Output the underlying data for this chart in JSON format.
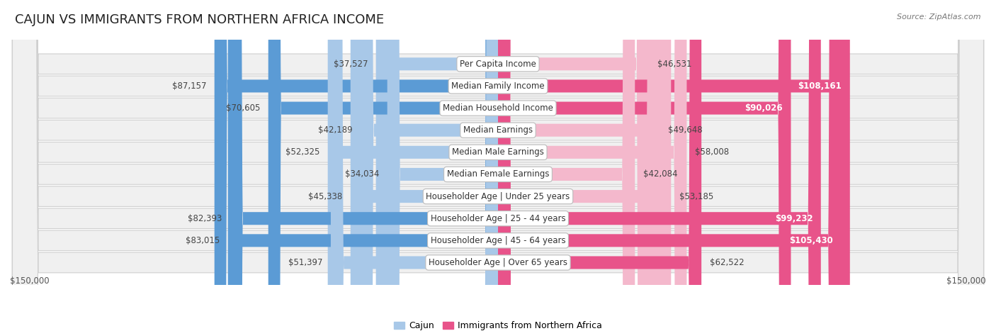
{
  "title": "CAJUN VS IMMIGRANTS FROM NORTHERN AFRICA INCOME",
  "source": "Source: ZipAtlas.com",
  "categories": [
    "Per Capita Income",
    "Median Family Income",
    "Median Household Income",
    "Median Earnings",
    "Median Male Earnings",
    "Median Female Earnings",
    "Householder Age | Under 25 years",
    "Householder Age | 25 - 44 years",
    "Householder Age | 45 - 64 years",
    "Householder Age | Over 65 years"
  ],
  "cajun_values": [
    37527,
    87157,
    70605,
    42189,
    52325,
    34034,
    45338,
    82393,
    83015,
    51397
  ],
  "immigrant_values": [
    46531,
    108161,
    90026,
    49648,
    58008,
    42084,
    53185,
    99232,
    105430,
    62522
  ],
  "cajun_color_light": "#a8c8e8",
  "cajun_color_dark": "#5b9bd5",
  "immigrant_color_light": "#f4b8cc",
  "immigrant_color_dark": "#e8538a",
  "row_bg_color": "#f0f0f0",
  "row_border_color": "#d0d0d0",
  "max_value": 150000,
  "legend_cajun": "Cajun",
  "legend_immigrant": "Immigrants from Northern Africa",
  "xlabel_left": "$150,000",
  "xlabel_right": "$150,000",
  "title_fontsize": 13,
  "value_fontsize": 8.5,
  "category_fontsize": 8.5,
  "legend_fontsize": 9,
  "source_fontsize": 8,
  "large_value_threshold": 80000
}
